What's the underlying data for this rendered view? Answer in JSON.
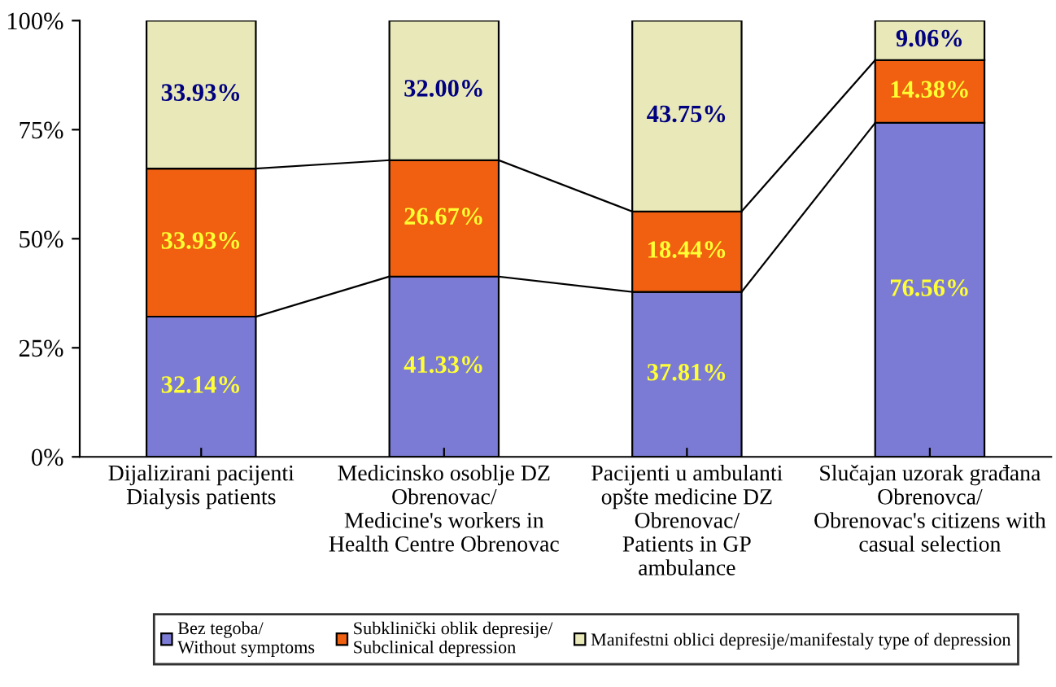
{
  "chart_data": {
    "type": "bar",
    "stacked": true,
    "categories": [
      "Dijalizirani pacijenti\nDialysis patients",
      "Medicinsko osoblje DZ\nObrenovac/\nMedicine's workers in\nHealth Centre Obrenovac",
      "Pacijenti u ambulanti\nopšte medicine DZ\nObrenovac/\nPatients in GP\nambulance",
      "Slučajan uzorak građana\nObrenovca/\nObrenovac's citizens with\ncasual selection"
    ],
    "series": [
      {
        "name": "Bez tegoba/\nWithout symptoms",
        "color": "#7b7bd6",
        "values": [
          32.14,
          41.33,
          37.81,
          76.56
        ],
        "value_labels": [
          "32.14%",
          "41.33%",
          "37.81%",
          "76.56%"
        ]
      },
      {
        "name": "Subklinički oblik depresije/\nSubclinical depression",
        "color": "#f06010",
        "values": [
          33.93,
          26.67,
          18.44,
          14.38
        ],
        "value_labels": [
          "33.93%",
          "26.67%",
          "18.44%",
          "14.38%"
        ]
      },
      {
        "name": "Manifestni oblici depresije/manifestaly type of depression",
        "color": "#e8e8b8",
        "values": [
          33.93,
          32.0,
          43.75,
          9.06
        ],
        "value_labels": [
          "33.93%",
          "32.00%",
          "43.75%",
          "9.06%"
        ]
      }
    ],
    "ylim": [
      0,
      100
    ],
    "yticks": [
      {
        "value": 0,
        "label": "0%"
      },
      {
        "value": 25,
        "label": "25%"
      },
      {
        "value": 50,
        "label": "50%"
      },
      {
        "value": 75,
        "label": "75%"
      },
      {
        "value": 100,
        "label": "100%"
      }
    ],
    "grid": false,
    "legend": "bottom"
  }
}
